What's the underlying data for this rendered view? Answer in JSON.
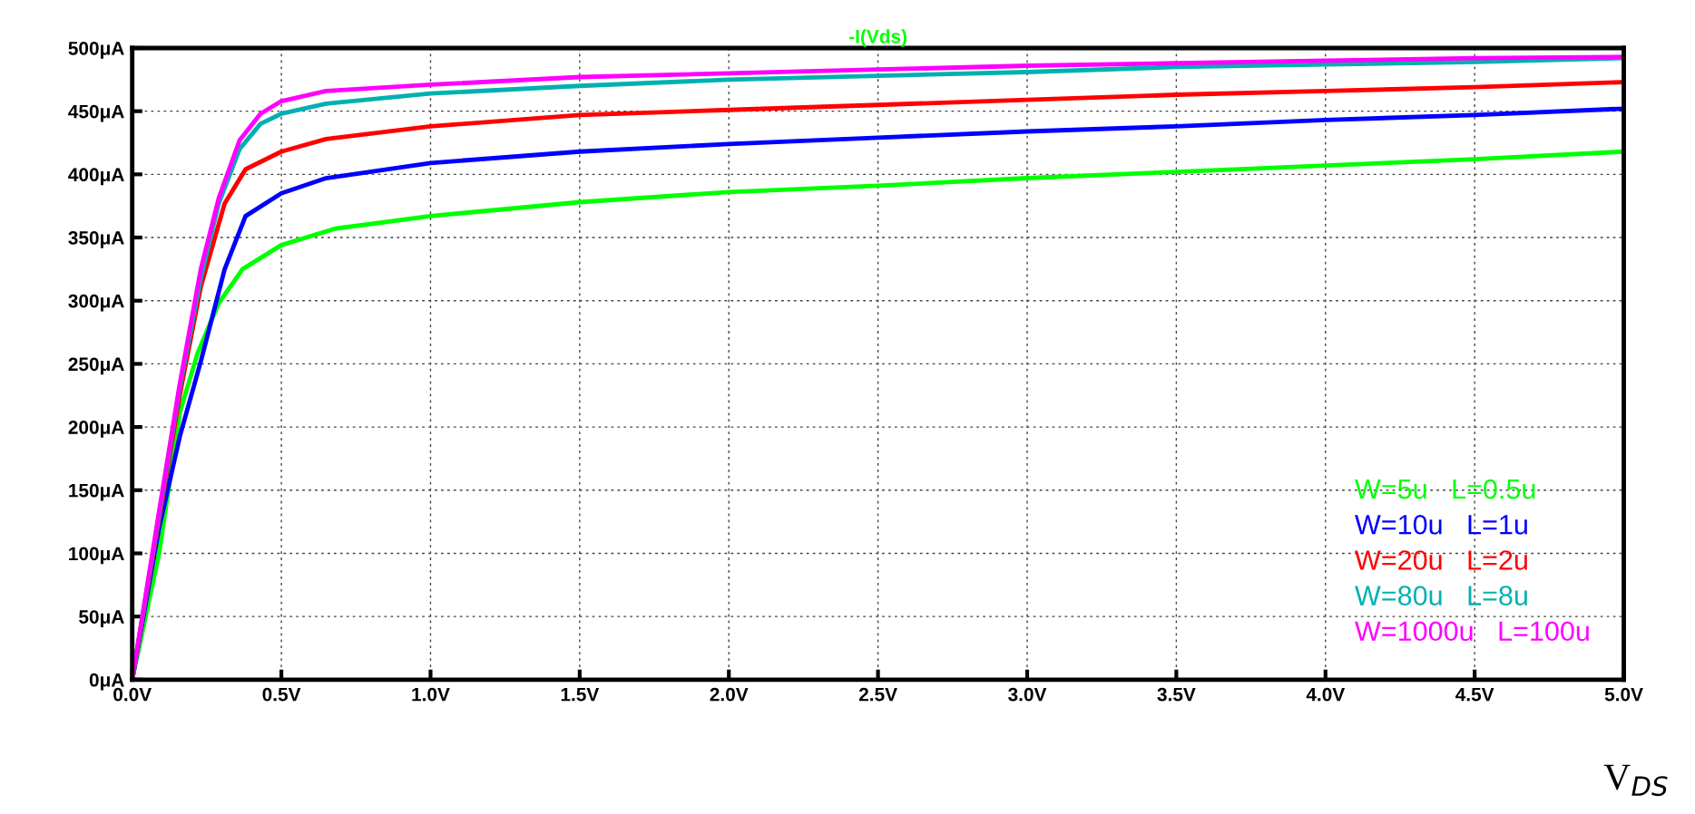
{
  "chart_data": {
    "type": "line",
    "title": "-I(Vds)",
    "xlabel": "V$_{DS}$",
    "xlim": [
      0,
      5
    ],
    "ylim": [
      0,
      500
    ],
    "xticks": [
      {
        "value": 0,
        "label": "0.0V"
      },
      {
        "value": 0.5,
        "label": "0.5V"
      },
      {
        "value": 1,
        "label": "1.0V"
      },
      {
        "value": 1.5,
        "label": "1.5V"
      },
      {
        "value": 2,
        "label": "2.0V"
      },
      {
        "value": 2.5,
        "label": "2.5V"
      },
      {
        "value": 3,
        "label": "3.0V"
      },
      {
        "value": 3.5,
        "label": "3.5V"
      },
      {
        "value": 4,
        "label": "4.0V"
      },
      {
        "value": 4.5,
        "label": "4.5V"
      },
      {
        "value": 5,
        "label": "5.0V"
      }
    ],
    "yticks": [
      {
        "value": 0,
        "label": "0μA"
      },
      {
        "value": 50,
        "label": "50μA"
      },
      {
        "value": 100,
        "label": "100μA"
      },
      {
        "value": 150,
        "label": "150μA"
      },
      {
        "value": 200,
        "label": "200μA"
      },
      {
        "value": 250,
        "label": "250μA"
      },
      {
        "value": 300,
        "label": "300μA"
      },
      {
        "value": 350,
        "label": "350μA"
      },
      {
        "value": 400,
        "label": "400μA"
      },
      {
        "value": 450,
        "label": "450μA"
      },
      {
        "value": 500,
        "label": "500μA"
      }
    ],
    "grid": true,
    "legend": "bottom right",
    "line_style": "solid",
    "series": [
      {
        "name": "W=5u L=0.5u",
        "color": "#00ff00",
        "x": [
          0,
          0.09,
          0.16,
          0.22,
          0.29,
          0.37,
          0.5,
          0.68,
          1.0,
          1.5,
          2.0,
          2.5,
          3.0,
          3.5,
          4.0,
          4.5,
          5.0
        ],
        "values": [
          0,
          100,
          212,
          259,
          298,
          325,
          344,
          357,
          367,
          378,
          386,
          391,
          397,
          402,
          407,
          412,
          418
        ]
      },
      {
        "name": "W=10u L=1u",
        "color": "#0000ff",
        "x": [
          0,
          0.09,
          0.16,
          0.23,
          0.31,
          0.38,
          0.5,
          0.65,
          1.0,
          1.5,
          2.0,
          2.5,
          3.0,
          3.5,
          4.0,
          4.5,
          5.0
        ],
        "values": [
          0,
          120,
          193,
          252,
          325,
          367,
          385,
          397,
          409,
          418,
          424,
          429,
          434,
          438,
          443,
          447,
          452
        ]
      },
      {
        "name": "W=20u L=2u",
        "color": "#ff0000",
        "x": [
          0,
          0.09,
          0.16,
          0.23,
          0.31,
          0.38,
          0.5,
          0.65,
          1.0,
          1.5,
          2.0,
          2.5,
          3.0,
          3.5,
          4.0,
          4.5,
          5.0
        ],
        "values": [
          0,
          127,
          226,
          311,
          377,
          404,
          418,
          428,
          438,
          447,
          451,
          455,
          459,
          463,
          466,
          469,
          473
        ]
      },
      {
        "name": "W=80u L=8u",
        "color": "#00b0b0",
        "x": [
          0,
          0.09,
          0.16,
          0.23,
          0.29,
          0.36,
          0.43,
          0.5,
          0.65,
          1.0,
          1.5,
          2.0,
          2.5,
          3.0,
          3.5,
          4.0,
          4.5,
          5.0
        ],
        "values": [
          0,
          130,
          232,
          318,
          377,
          420,
          440,
          448,
          456,
          464,
          470,
          475,
          478,
          481,
          485,
          487,
          489,
          492
        ]
      },
      {
        "name": "W=1000u L=100u",
        "color": "#ff00ff",
        "x": [
          0,
          0.09,
          0.16,
          0.23,
          0.29,
          0.36,
          0.43,
          0.5,
          0.65,
          1.0,
          1.5,
          2.0,
          2.5,
          3.0,
          3.5,
          4.0,
          4.5,
          5.0
        ],
        "values": [
          0,
          133,
          235,
          325,
          381,
          427,
          448,
          458,
          466,
          471,
          477,
          480,
          483,
          486,
          488,
          490,
          492,
          493
        ]
      }
    ]
  }
}
